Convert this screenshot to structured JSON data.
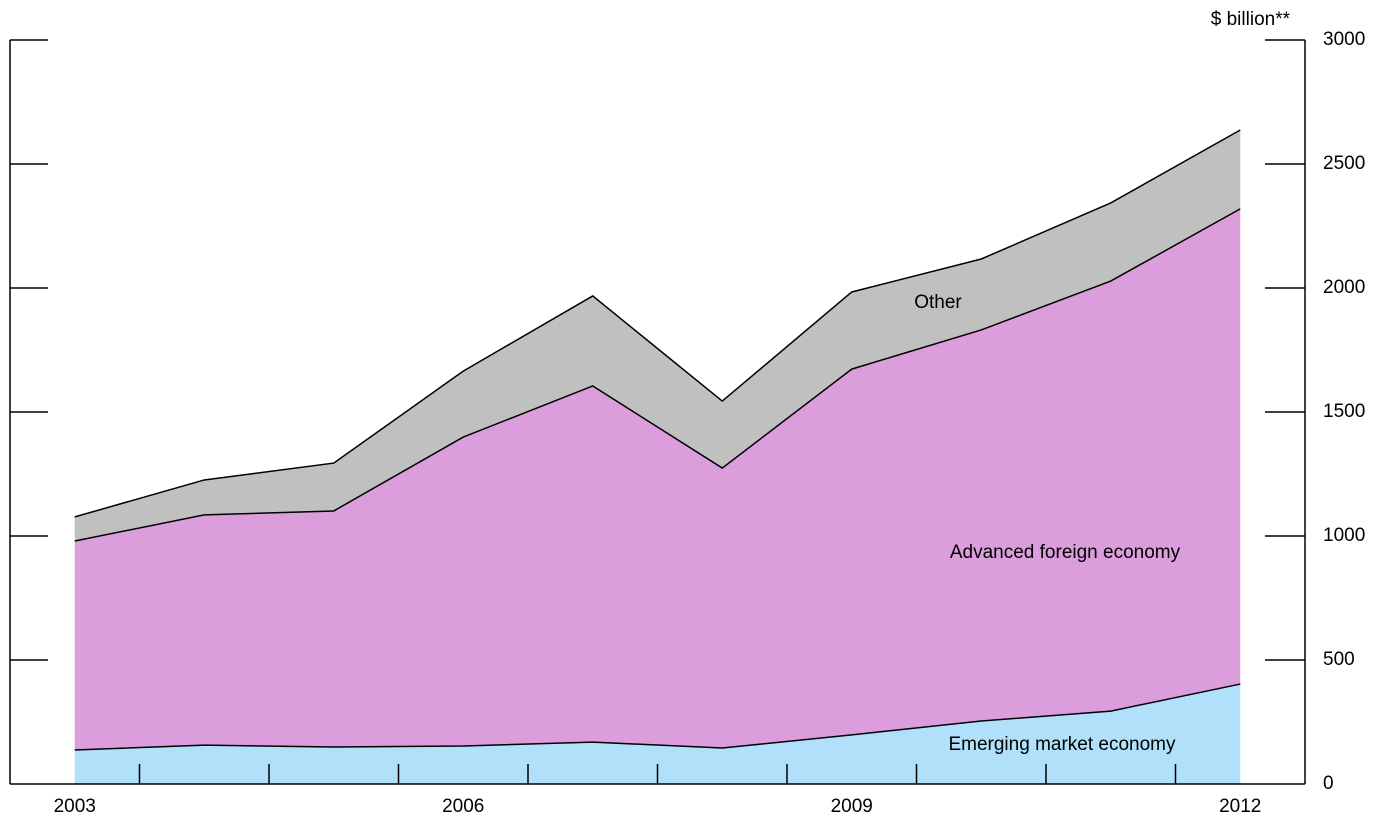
{
  "chart_data": {
    "type": "stacked_area",
    "y_label": "$ billion**",
    "x": [
      2003,
      2004,
      2005,
      2006,
      2007,
      2008,
      2009,
      2010,
      2011,
      2012
    ],
    "xlim": [
      2002.5,
      2012.5
    ],
    "xticks": [
      2003,
      2006,
      2009,
      2012
    ],
    "ylim": [
      0,
      3000
    ],
    "yticks": [
      0,
      500,
      1000,
      1500,
      2000,
      2500,
      3000
    ],
    "series": [
      {
        "name": "Emerging market economy",
        "color": "#b0e0fa",
        "values": [
          137,
          157,
          149,
          153,
          169,
          145,
          198,
          254,
          294,
          403
        ]
      },
      {
        "name": "Advanced foreign economy",
        "color": "#dc9ddc",
        "values": [
          843,
          928,
          952,
          1246,
          1436,
          1129,
          1475,
          1577,
          1734,
          1916
        ]
      },
      {
        "name": "Other",
        "color": "#c0c0c0",
        "values": [
          97,
          141,
          193,
          266,
          363,
          270,
          311,
          286,
          315,
          318
        ]
      }
    ]
  }
}
